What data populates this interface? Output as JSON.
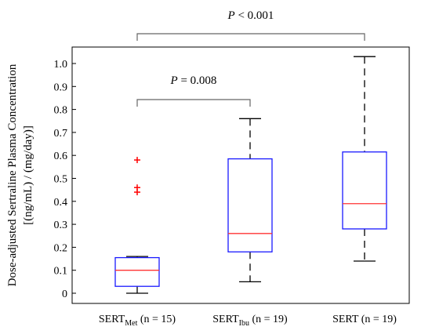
{
  "chart_data": {
    "type": "box",
    "ylabel_line1": "Dose-adjusted Sertraline Plasma Concentration",
    "ylabel_line2": "[(ng/mL) / (mg/day)]",
    "ylim": [
      0,
      1.05
    ],
    "yticks": [
      "0",
      "0.1",
      "0.2",
      "0.3",
      "0.4",
      "0.5",
      "0.6",
      "0.7",
      "0.8",
      "0.9",
      "1.0"
    ],
    "groups": [
      {
        "label_main": "SERT",
        "label_sub": "Met",
        "label_tail": " (n = 15)",
        "min": 0.0,
        "q1": 0.03,
        "median": 0.1,
        "q3": 0.155,
        "max": 0.16,
        "outliers": [
          0.44,
          0.46,
          0.58
        ]
      },
      {
        "label_main": "SERT",
        "label_sub": "Ibu",
        "label_tail": " (n = 19)",
        "min": 0.05,
        "q1": 0.18,
        "median": 0.26,
        "q3": 0.585,
        "max": 0.76,
        "outliers": []
      },
      {
        "label_main": "SERT",
        "label_sub": "",
        "label_tail": " (n = 19)",
        "min": 0.14,
        "q1": 0.28,
        "median": 0.39,
        "q3": 0.615,
        "max": 1.03,
        "outliers": []
      }
    ],
    "annotations": [
      {
        "italic": "P",
        "text": " < 0.001",
        "from_group": 0,
        "to_group": 2
      },
      {
        "italic": "P",
        "text": " = 0.008",
        "from_group": 0,
        "to_group": 1
      }
    ],
    "colors": {
      "box": "#1a1aff",
      "median": "#ff3333",
      "whisker": "#000000",
      "outlier": "#ff0000",
      "axis": "#000000"
    }
  }
}
